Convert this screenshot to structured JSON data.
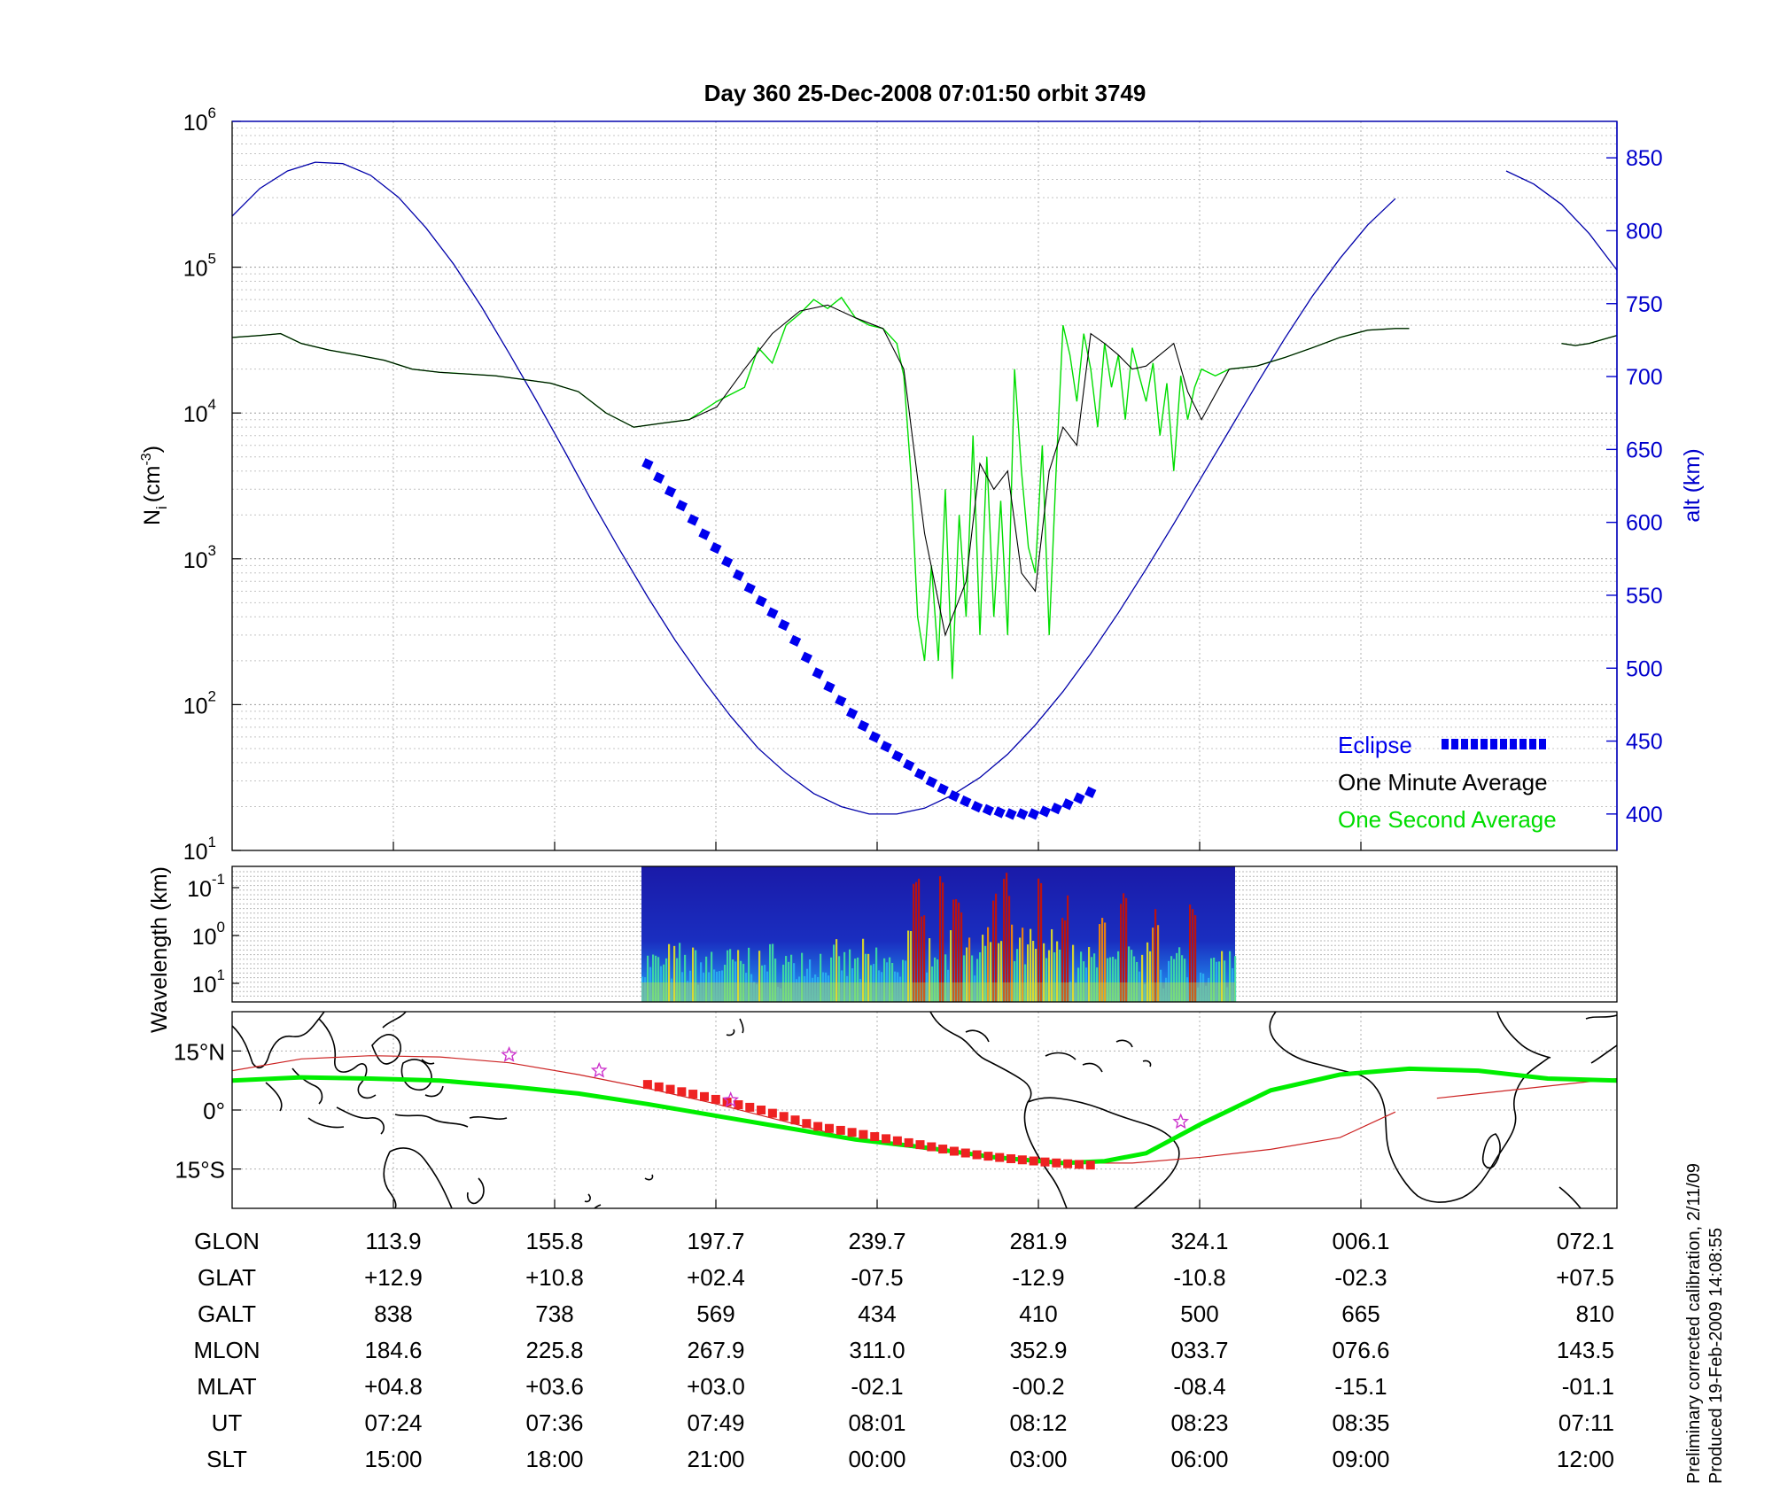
{
  "chart_data": [
    {
      "type": "line",
      "title": "Day 360  25-Dec-2008 07:01:50   orbit 3749",
      "ylabel_left": "N",
      "ylabel_left_sub": "i",
      "ylabel_left_unit": "(cm",
      "ylabel_left_unit_exp": "-3",
      "ylabel_left_close": ")",
      "ylabel_right": "alt (km)",
      "y_left_scale": "log",
      "y_left_range": [
        10,
        1000000
      ],
      "y_left_ticks": [
        {
          "base": "10",
          "exp": "1"
        },
        {
          "base": "10",
          "exp": "2"
        },
        {
          "base": "10",
          "exp": "3"
        },
        {
          "base": "10",
          "exp": "4"
        },
        {
          "base": "10",
          "exp": "5"
        },
        {
          "base": "10",
          "exp": "6"
        }
      ],
      "y_right_range": [
        375,
        875
      ],
      "y_right_ticks": [
        "400",
        "450",
        "500",
        "550",
        "600",
        "650",
        "700",
        "750",
        "800",
        "850"
      ],
      "x_range": [
        0,
        100
      ],
      "grid": true,
      "legend_position": "bottom-right",
      "legend": [
        {
          "name": "Eclipse",
          "color": "#0000ee",
          "style": "dotted-thick"
        },
        {
          "name": "One Minute Average",
          "color": "#000000",
          "style": "line"
        },
        {
          "name": "One Second Average",
          "color": "#00dd00",
          "style": "line"
        }
      ],
      "series": [
        {
          "key": "altitude",
          "color": "#0000aa",
          "axis": "right",
          "x": [
            0,
            2,
            4,
            6,
            8,
            10,
            12,
            14,
            16,
            18,
            20,
            22,
            24,
            26,
            28,
            30,
            32,
            34,
            36,
            38,
            40,
            42,
            44,
            46,
            48,
            50,
            52,
            54,
            56,
            58,
            60,
            62,
            64,
            66,
            68,
            70,
            72,
            74,
            76,
            78,
            80,
            82,
            84,
            86,
            88,
            90,
            92,
            94,
            96,
            98,
            100
          ],
          "y": [
            810,
            829,
            841,
            847,
            846,
            838,
            823,
            802,
            777,
            748,
            716,
            683,
            649,
            614,
            581,
            549,
            519,
            492,
            467,
            445,
            428,
            414,
            405,
            400,
            400,
            404,
            413,
            425,
            441,
            461,
            484,
            510,
            538,
            568,
            599,
            631,
            663,
            695,
            726,
            755,
            781,
            804,
            822,
            835,
            843,
            845,
            841,
            832,
            818,
            798,
            773
          ]
        },
        {
          "key": "ni_minute",
          "color": "#000000",
          "axis": "left",
          "x": [
            0,
            2,
            3.5,
            5,
            7,
            9,
            11,
            13,
            15,
            17,
            19,
            21,
            23,
            25,
            27,
            29,
            31,
            33,
            35,
            37,
            39,
            41,
            43,
            45,
            47,
            48.5,
            50,
            51.5,
            52,
            53,
            54,
            55,
            56,
            57,
            58,
            59,
            60,
            61,
            62,
            63,
            64,
            65,
            66,
            68,
            69,
            70,
            72,
            74,
            76,
            78,
            80,
            82,
            84,
            85,
            86,
            87,
            88,
            89,
            90,
            91,
            92,
            93,
            94,
            95,
            96,
            97,
            98,
            99,
            100
          ],
          "y": [
            33000,
            34000,
            35000,
            30000,
            27000,
            25000,
            23000,
            20000,
            19000,
            18500,
            18000,
            17000,
            16000,
            14000,
            10000,
            8000,
            8500,
            9000,
            11000,
            20000,
            35000,
            50000,
            55000,
            45000,
            38000,
            20000,
            1500,
            300,
            400,
            700,
            4500,
            3000,
            4000,
            800,
            600,
            4000,
            8000,
            6000,
            35000,
            30000,
            25000,
            20000,
            21000,
            30000,
            14000,
            9000,
            20000,
            21000,
            24000,
            28000,
            33000,
            37000,
            38000,
            38000,
            null,
            null,
            null,
            null,
            null,
            null,
            null,
            null,
            null,
            null,
            30000,
            29000,
            30000,
            32000,
            34000
          ]
        },
        {
          "key": "ni_second",
          "color": "#00dd00",
          "axis": "left",
          "x": [
            0,
            2,
            3.5,
            5,
            7,
            9,
            11,
            13,
            15,
            17,
            19,
            21,
            23,
            25,
            27,
            29,
            31,
            33,
            35,
            37,
            38,
            39,
            40,
            41,
            42,
            43,
            44,
            45,
            46,
            47,
            48,
            48.5,
            49,
            49.5,
            50,
            50.5,
            51,
            51.5,
            52,
            52.5,
            53,
            53.5,
            54,
            54.5,
            55,
            55.5,
            56,
            56.5,
            57,
            57.5,
            58,
            58.5,
            59,
            59.5,
            60,
            60.5,
            61,
            61.5,
            62,
            62.5,
            63,
            63.5,
            64,
            64.5,
            65,
            65.5,
            66,
            66.5,
            67,
            67.5,
            68,
            68.5,
            69,
            69.5,
            70,
            71,
            72,
            74,
            76,
            78,
            80,
            82,
            84,
            85,
            86,
            87,
            88,
            89,
            90,
            91,
            92,
            93,
            94,
            95,
            96,
            97,
            98,
            99,
            100
          ],
          "y": [
            33000,
            34000,
            35000,
            30000,
            27000,
            25000,
            23000,
            20000,
            19000,
            18500,
            18000,
            17000,
            16000,
            14000,
            10000,
            8000,
            8500,
            9000,
            12000,
            15000,
            28000,
            22000,
            40000,
            48000,
            60000,
            52000,
            62000,
            45000,
            40000,
            38000,
            30000,
            18000,
            4000,
            400,
            200,
            900,
            200,
            3000,
            150,
            2000,
            400,
            7000,
            300,
            5000,
            400,
            2500,
            300,
            20000,
            4000,
            1200,
            800,
            6000,
            300,
            4000,
            40000,
            25000,
            12000,
            35000,
            20000,
            8000,
            30000,
            15000,
            25000,
            9000,
            28000,
            18000,
            12000,
            22000,
            7000,
            16000,
            4000,
            18000,
            9000,
            15000,
            20000,
            18000,
            20000,
            21000,
            24000,
            28000,
            33000,
            37000,
            38000,
            38000,
            null,
            null,
            null,
            null,
            null,
            null,
            null,
            null,
            null,
            null,
            30000,
            29000,
            30000,
            32000,
            34000
          ]
        },
        {
          "key": "eclipse",
          "color": "#0000ee",
          "axis": "right",
          "style": "squares",
          "x": [
            30,
            32,
            34,
            36,
            38,
            40,
            42,
            44,
            46,
            48,
            50,
            52,
            54,
            56,
            58,
            60,
            62
          ],
          "y": [
            640,
            617,
            593,
            570,
            548,
            528,
            500,
            477,
            456,
            440,
            425,
            413,
            404,
            400,
            400,
            405,
            415
          ]
        }
      ]
    },
    {
      "type": "heatmap",
      "ylabel": "Wavelength (km)",
      "y_scale": "log",
      "y_ticks": [
        {
          "base": "10",
          "exp": "-1"
        },
        {
          "base": "10",
          "exp": "0"
        },
        {
          "base": "10",
          "exp": "1"
        }
      ],
      "x_extent": [
        29.5,
        72.5
      ],
      "colormap": "jet",
      "note_visible": "spectrogram intensity, stronger near 49–56 and 58–62"
    },
    {
      "type": "line",
      "ylabel_ticks": [
        "15°N",
        "0°",
        "15°S"
      ],
      "y_range": [
        -25,
        25
      ],
      "x_range": [
        0,
        100
      ],
      "series": [
        {
          "key": "magnetic_track",
          "color": "#00ee00",
          "x": [
            0,
            5,
            10,
            15,
            20,
            25,
            30,
            35,
            40,
            45,
            50,
            55,
            60,
            63,
            66,
            70,
            75,
            80,
            85,
            90,
            95,
            100
          ],
          "y": [
            7.5,
            8.3,
            8.0,
            7.5,
            6.0,
            4.2,
            1.5,
            -1.5,
            -4.5,
            -7.5,
            -9.5,
            -12.0,
            -13.5,
            -13.0,
            -11.0,
            -3.5,
            5.0,
            9.0,
            10.5,
            10.0,
            8.0,
            7.5
          ]
        },
        {
          "key": "geographic_track",
          "color": "#cc2222",
          "x": [
            0,
            5,
            10,
            15,
            20,
            25,
            30,
            35,
            40,
            45,
            50,
            55,
            60,
            65,
            70,
            75,
            80,
            84,
            85
          ],
          "y": [
            10.0,
            13.0,
            13.8,
            13.5,
            12.0,
            9.0,
            5.5,
            1.5,
            -3.0,
            -7.5,
            -10.0,
            -12.0,
            -13.5,
            -13.5,
            -12.0,
            -10.0,
            -7.0,
            -0.5,
            null
          ]
        },
        {
          "key": "eclipse_track",
          "color": "#ee2222",
          "style": "squares",
          "x": [
            30,
            32,
            34,
            36,
            38,
            40,
            42,
            44,
            46,
            48,
            50,
            52,
            54,
            56,
            58,
            60,
            62
          ],
          "y": [
            6.5,
            5.0,
            3.5,
            1.8,
            0.2,
            -1.8,
            -4.0,
            -5.2,
            -6.5,
            -7.8,
            -9.0,
            -10.4,
            -11.5,
            -12.3,
            -13.0,
            -13.6,
            -14.0
          ]
        }
      ],
      "markers": [
        {
          "type": "star",
          "x": 20,
          "y": 14,
          "color": "#cc33cc"
        },
        {
          "type": "star",
          "x": 26.5,
          "y": 10,
          "color": "#cc33cc"
        },
        {
          "type": "star",
          "x": 36,
          "y": 2.5,
          "color": "#cc33cc"
        },
        {
          "type": "star",
          "x": 68.5,
          "y": -3,
          "color": "#cc33cc"
        }
      ]
    },
    {
      "type": "table",
      "row_labels": [
        "GLON",
        "GLAT",
        "GALT",
        "MLON",
        "MLAT",
        "UT",
        "SLT"
      ],
      "columns": [
        [
          "113.9",
          "+12.9",
          "838",
          "184.6",
          "+04.8",
          "07:24",
          "15:00"
        ],
        [
          "155.8",
          "+10.8",
          "738",
          "225.8",
          "+03.6",
          "07:36",
          "18:00"
        ],
        [
          "197.7",
          "+02.4",
          "569",
          "267.9",
          "+03.0",
          "07:49",
          "21:00"
        ],
        [
          "239.7",
          "-07.5",
          "434",
          "311.0",
          "-02.1",
          "08:01",
          "00:00"
        ],
        [
          "281.9",
          "-12.9",
          "410",
          "352.9",
          "-00.2",
          "08:12",
          "03:00"
        ],
        [
          "324.1",
          "-10.8",
          "500",
          "033.7",
          "-08.4",
          "08:23",
          "06:00"
        ],
        [
          "006.1",
          "-02.3",
          "665",
          "076.6",
          "-15.1",
          "08:35",
          "09:00"
        ],
        [
          "072.1",
          "+07.5",
          "810",
          "143.5",
          "-01.1",
          "07:11",
          "12:00"
        ]
      ]
    }
  ],
  "footnote": {
    "line1": "Preliminary corrected calibration, 2/11/09",
    "line2": "Produced 19-Feb-2009 14:08:55"
  }
}
